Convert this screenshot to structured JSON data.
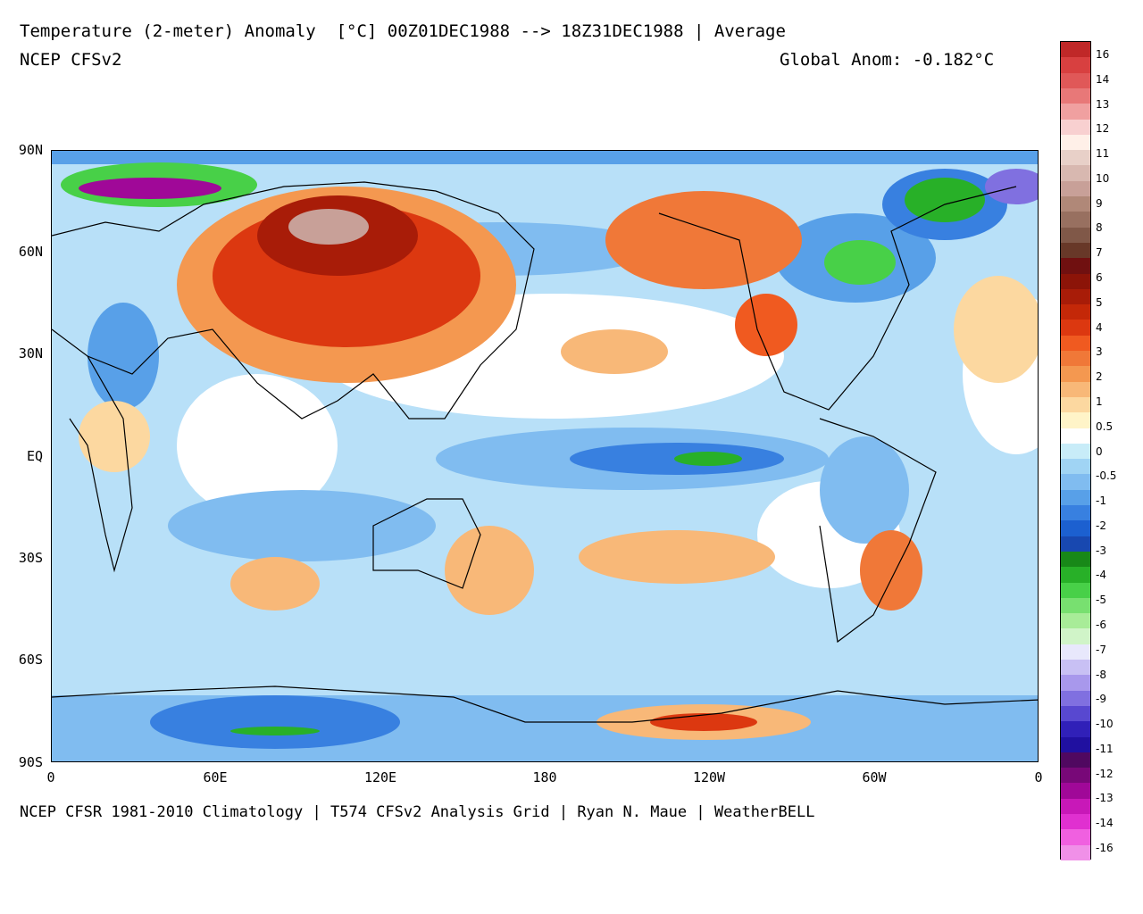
{
  "header": {
    "title": "Temperature (2-meter) Anomaly  [°C] 00Z01DEC1988 --> 18Z31DEC1988 | Average",
    "model": "NCEP CFSv2",
    "global_anomaly": "Global Anom: -0.182°C"
  },
  "footer": {
    "credits": "NCEP CFSR 1981-2010 Climatology | T574 CFSv2 Analysis Grid | Ryan N. Maue | WeatherBELL"
  },
  "axes": {
    "lat_labels": [
      "90N",
      "60N",
      "30N",
      "EQ",
      "30S",
      "60S",
      "90S"
    ],
    "lon_labels": [
      "0",
      "60E",
      "120E",
      "180",
      "120W",
      "60W",
      "0"
    ]
  },
  "colors": {
    "cold_extreme": "#f090e0",
    "cold_mid": "#1850c8",
    "neutral": "#ffffff",
    "warm_mid": "#e84020",
    "warm_extreme": "#c0b0a8"
  },
  "colorbar": {
    "labels": [
      "16",
      "14",
      "13",
      "12",
      "11",
      "10",
      "9",
      "8",
      "7",
      "6",
      "5",
      "4",
      "3",
      "2",
      "1",
      "0.5",
      "0",
      "-0.5",
      "-1",
      "-2",
      "-3",
      "-4",
      "-5",
      "-6",
      "-7",
      "-8",
      "-9",
      "-10",
      "-11",
      "-12",
      "-13",
      "-14",
      "-16"
    ],
    "swatches": [
      "#c02828",
      "#d84040",
      "#e05858",
      "#e87878",
      "#f0a0a0",
      "#f8d0d0",
      "#fff0e8",
      "#e8d0c8",
      "#d8b8b0",
      "#c8a098",
      "#b08878",
      "#987060",
      "#805848",
      "#683828",
      "#701010",
      "#8c1408",
      "#a81c08",
      "#c42808",
      "#dc3810",
      "#f05a20",
      "#f07838",
      "#f49850",
      "#f8b878",
      "#fcd8a0",
      "#fff4c8",
      "#ffffff",
      "#c8ecf8",
      "#a0d4f4",
      "#80bcf0",
      "#58a0e8",
      "#3880e0",
      "#1c60d0",
      "#1848b0",
      "#188818",
      "#28b028",
      "#48d048",
      "#78e070",
      "#a8ec98",
      "#d0f4c8",
      "#e8e8fc",
      "#c8c0f4",
      "#a898ec",
      "#8070e0",
      "#5848d0",
      "#3020b8",
      "#2010a0",
      "#500860",
      "#780878",
      "#a00898",
      "#c818b8",
      "#e030d0",
      "#f060e0",
      "#f090e8"
    ]
  }
}
